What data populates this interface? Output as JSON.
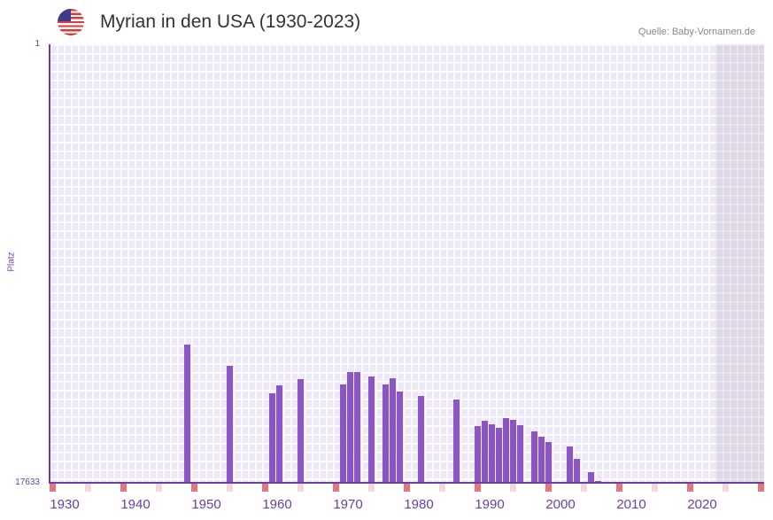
{
  "header": {
    "title": "Myrian in den USA (1930-2023)",
    "source": "Quelle: Baby-Vornamen.de",
    "flag": "us-flag-icon"
  },
  "chart_data": {
    "type": "bar",
    "title": "Myrian in den USA (1930-2023)",
    "ylabel": "Platz",
    "ylim": [
      17633,
      1
    ],
    "y_ticks": [
      "1",
      "17633"
    ],
    "x_range": [
      1928,
      2028
    ],
    "x_ticks": [
      "1930",
      "1940",
      "1950",
      "1960",
      "1970",
      "1980",
      "1990",
      "2000",
      "2010",
      "2020"
    ],
    "colors": {
      "bar": "#8b55c6",
      "decade": "#e8737a",
      "half_decade": "#f5d5de"
    },
    "x": [
      1947,
      1953,
      1959,
      1960,
      1963,
      1969,
      1970,
      1971,
      1973,
      1975,
      1976,
      1977,
      1980,
      1985,
      1988,
      1989,
      1990,
      1991,
      1992,
      1993,
      1994,
      1996,
      1997,
      1998,
      2001,
      2002,
      2004,
      2005
    ],
    "values": [
      12076,
      12930,
      14035,
      13715,
      13465,
      13679,
      13180,
      13180,
      13358,
      13679,
      13430,
      13964,
      14141,
      14284,
      15353,
      15139,
      15282,
      15424,
      15032,
      15104,
      15317,
      15566,
      15780,
      15994,
      16172,
      16671,
      17205,
      17561
    ]
  }
}
